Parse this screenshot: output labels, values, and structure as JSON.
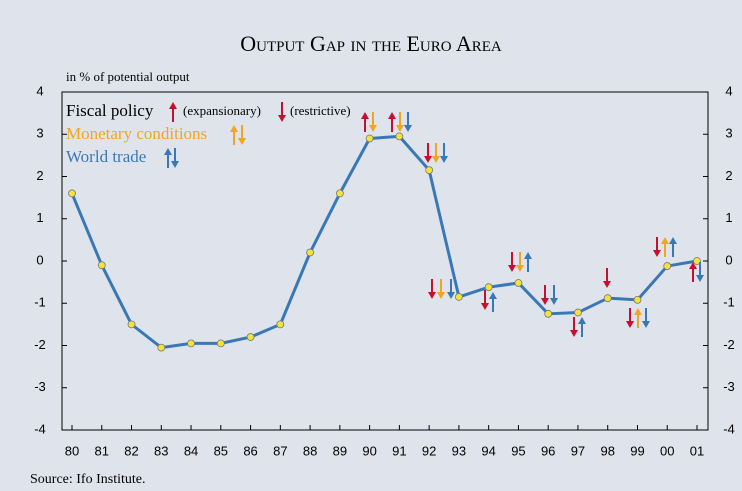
{
  "chart_data": {
    "type": "line",
    "title": "Output Gap in the Euro Area",
    "y_label": "in % of potential output",
    "source": "Source: Ifo Institute.",
    "legend_texts": {
      "fiscal": "Fiscal policy",
      "expansionary": "(expansionary)",
      "restrictive": "(restrictive)",
      "monetary": "Monetary conditions",
      "trade": "World trade"
    },
    "categories": [
      "80",
      "81",
      "82",
      "83",
      "84",
      "85",
      "86",
      "87",
      "88",
      "89",
      "90",
      "91",
      "92",
      "93",
      "94",
      "95",
      "96",
      "97",
      "98",
      "99",
      "00",
      "01"
    ],
    "series": [
      {
        "name": "Output gap",
        "color": "#3a78b5",
        "values": [
          1.6,
          -0.1,
          -1.5,
          -2.05,
          -1.95,
          -1.95,
          -1.8,
          -1.5,
          0.2,
          1.6,
          2.9,
          2.95,
          2.15,
          -0.85,
          -0.62,
          -0.52,
          -1.25,
          -1.22,
          -0.88,
          -0.92,
          -0.12,
          0.0
        ]
      }
    ],
    "marker_color": "#f2e23c",
    "ylim": [
      -4,
      4
    ],
    "yticks": [
      -4,
      -3,
      -2,
      -1,
      0,
      1,
      2,
      3,
      4
    ],
    "y2lim": [
      -4,
      4
    ],
    "y2ticks": [
      -4,
      -3,
      -2,
      -1,
      0,
      1,
      2,
      3,
      4
    ]
  }
}
